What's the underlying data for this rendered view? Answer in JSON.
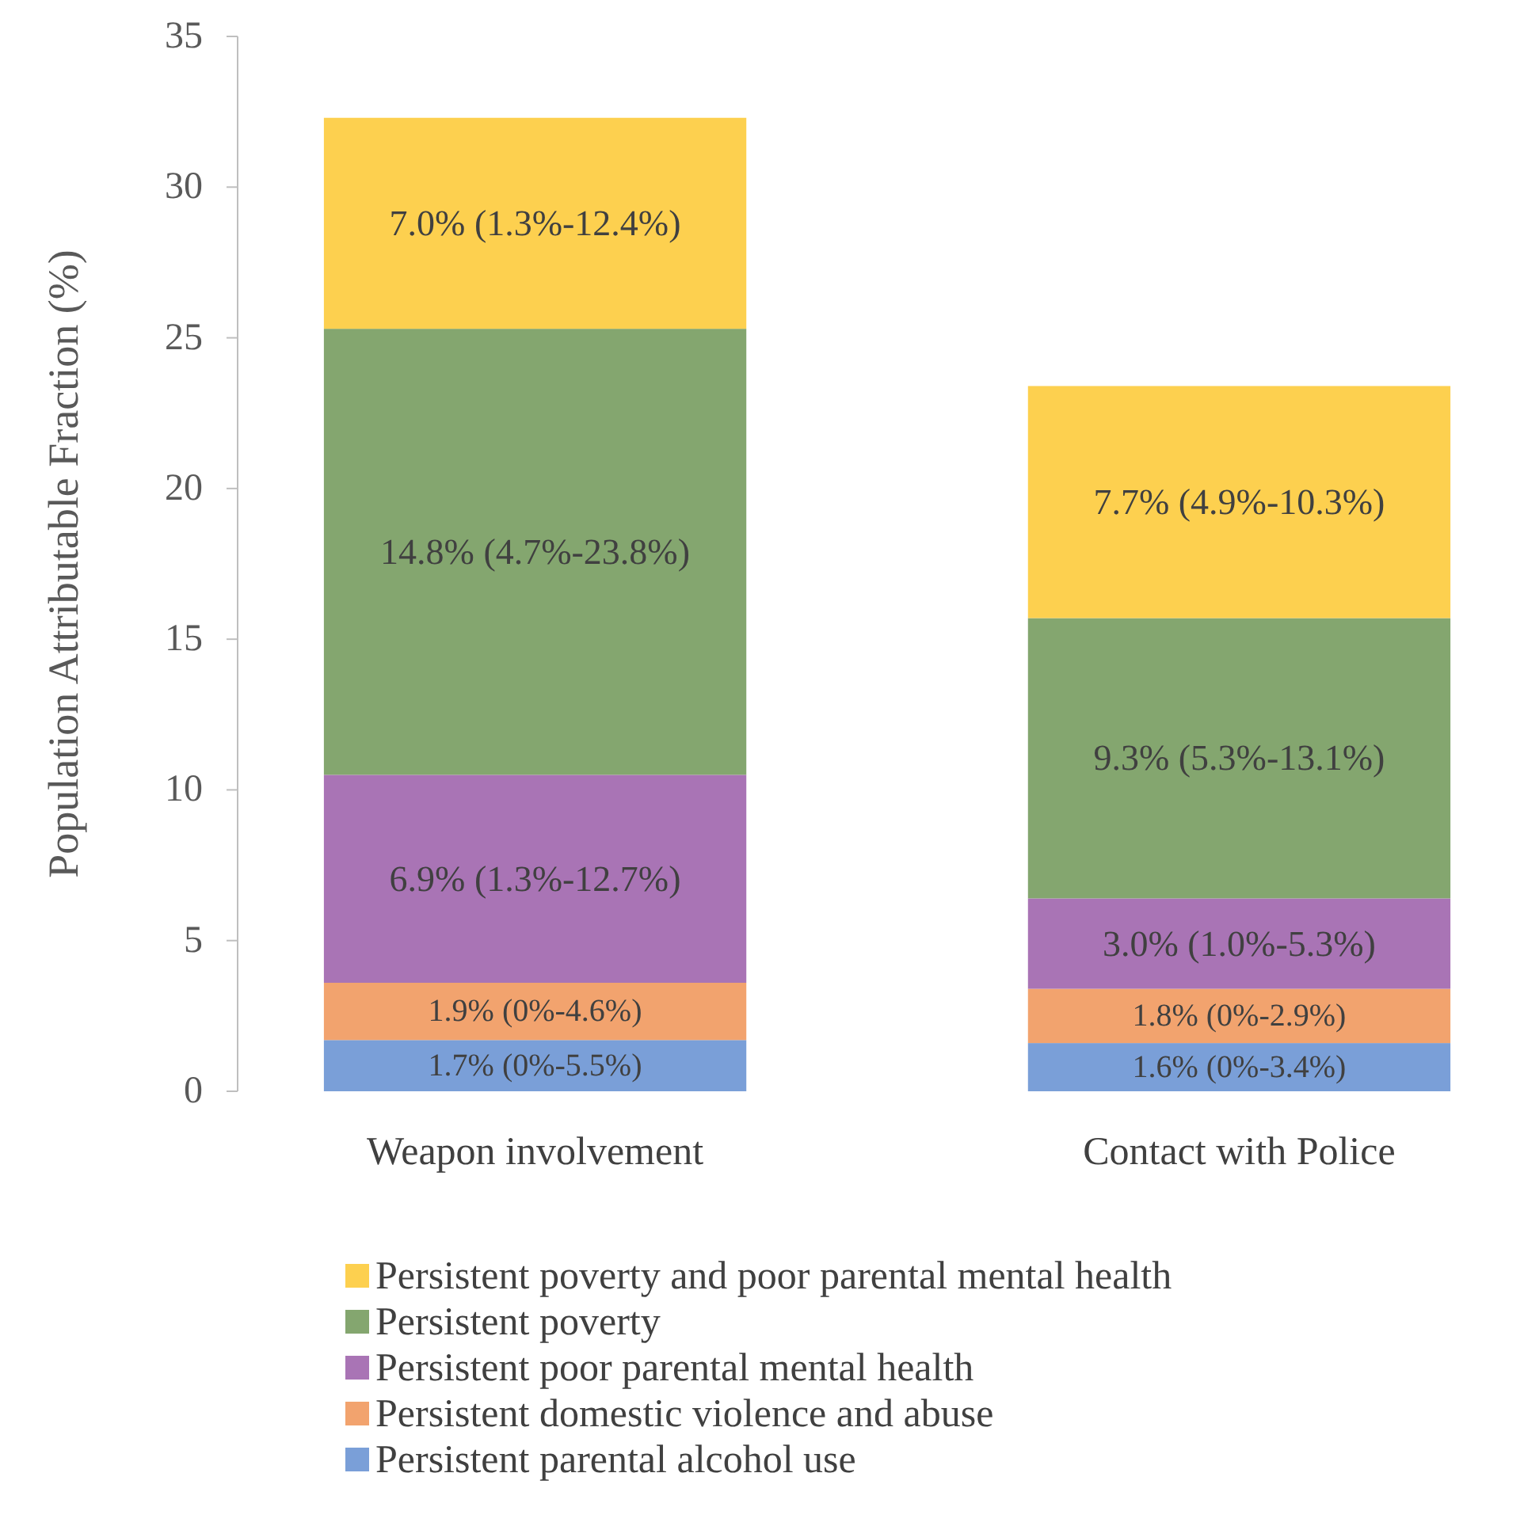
{
  "chart_data": {
    "type": "bar",
    "stacked": true,
    "ylabel": "Population Attributable Fraction (%)",
    "categories": [
      "Weapon involvement",
      "Contact with Police"
    ],
    "ylim": [
      0,
      35
    ],
    "yticks": [
      0,
      5,
      10,
      15,
      20,
      25,
      30,
      35
    ],
    "grid": false,
    "legend": "bottom",
    "series": [
      {
        "name": "Persistent parental alcohol use",
        "color": "#7a9fd8",
        "values": [
          1.7,
          1.6
        ],
        "value_labels": [
          "1.7% (0%-5.5%)",
          "1.6% (0%-3.4%)"
        ]
      },
      {
        "name": "Persistent domestic violence and abuse",
        "color": "#f2a36e",
        "values": [
          1.9,
          1.8
        ],
        "value_labels": [
          "1.9% (0%-4.6%)",
          "1.8% (0%-2.9%)"
        ]
      },
      {
        "name": "Persistent poor parental mental health",
        "color": "#a974b5",
        "values": [
          6.9,
          3.0
        ],
        "value_labels": [
          "6.9% (1.3%-12.7%)",
          "3.0% (1.0%-5.3%)"
        ]
      },
      {
        "name": "Persistent poverty",
        "color": "#84a66f",
        "values": [
          14.8,
          9.3
        ],
        "value_labels": [
          "14.8% (4.7%-23.8%)",
          "9.3% (5.3%-13.1%)"
        ]
      },
      {
        "name": "Persistent poverty and poor parental mental health",
        "color": "#fdd04f",
        "values": [
          7.0,
          7.7
        ],
        "value_labels": [
          "7.0% (1.3%-12.4%)",
          "7.7% (4.9%-10.3%)"
        ]
      }
    ]
  }
}
